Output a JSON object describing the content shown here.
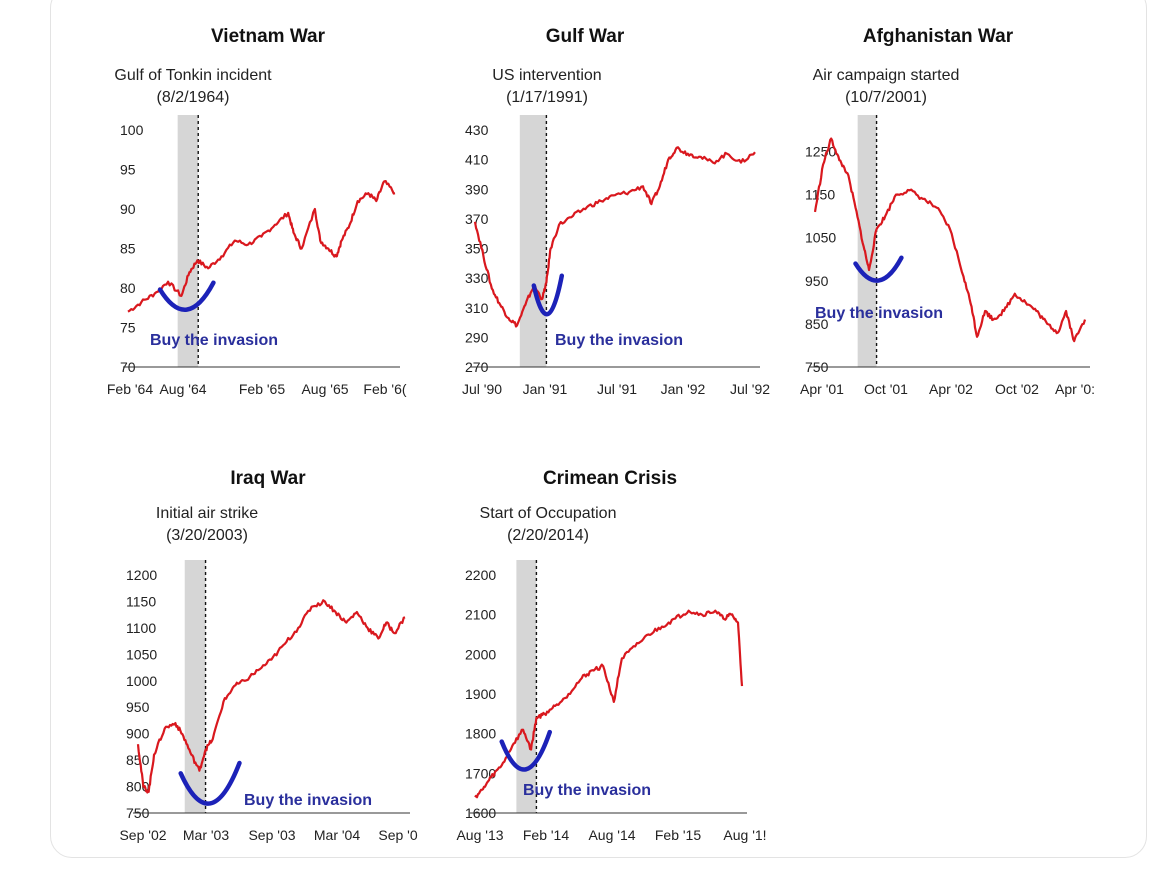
{
  "colors": {
    "line": "#d9181e",
    "shade": "#d6d6d6",
    "marker": "#1c22b8",
    "axis": "#333333"
  },
  "chart_data": [
    {
      "id": "vietnam",
      "type": "line",
      "title": "Vietnam War",
      "annotation": [
        "Gulf of Tonkin incident",
        "(8/2/1964)"
      ],
      "callout": "Buy the invasion",
      "x_labels": [
        "Feb '64",
        "Aug '64",
        "Feb '65",
        "Aug '65",
        "Feb '6("
      ],
      "y_ticks": [
        70,
        75,
        80,
        85,
        90,
        95,
        100
      ],
      "ylim": [
        70,
        100
      ],
      "event_x": 0.263,
      "shade_x": [
        0.186,
        0.263
      ],
      "series": [
        {
          "values": [
            [
              0,
              77
            ],
            [
              0.05,
              78.2
            ],
            [
              0.1,
              79.3
            ],
            [
              0.15,
              80.8
            ],
            [
              0.2,
              79
            ],
            [
              0.23,
              82
            ],
            [
              0.26,
              83.5
            ],
            [
              0.3,
              82.5
            ],
            [
              0.35,
              84
            ],
            [
              0.4,
              86
            ],
            [
              0.45,
              85.5
            ],
            [
              0.5,
              86.5
            ],
            [
              0.55,
              88
            ],
            [
              0.6,
              89.5
            ],
            [
              0.62,
              87
            ],
            [
              0.65,
              85
            ],
            [
              0.7,
              90
            ],
            [
              0.72,
              86
            ],
            [
              0.75,
              85
            ],
            [
              0.78,
              84
            ],
            [
              0.8,
              86
            ],
            [
              0.83,
              88
            ],
            [
              0.86,
              91
            ],
            [
              0.9,
              92
            ],
            [
              0.93,
              91
            ],
            [
              0.96,
              93.5
            ],
            [
              1,
              92
            ]
          ]
        }
      ],
      "smile": {
        "x": [
          0.12,
          0.32
        ],
        "y_top": 79.8,
        "y_bottom": 76.9
      }
    },
    {
      "id": "gulf",
      "type": "line",
      "title": "Gulf War",
      "annotation": [
        "US intervention",
        "(1/17/1991)"
      ],
      "callout": "Buy the invasion",
      "x_labels": [
        "Jul '90",
        "Jan '91",
        "Jul '91",
        "Jan '92",
        "Jul '92"
      ],
      "y_ticks": [
        270,
        290,
        310,
        330,
        350,
        370,
        390,
        410,
        430
      ],
      "ylim": [
        270,
        430
      ],
      "event_x": 0.255,
      "shade_x": [
        0.16,
        0.255
      ],
      "series": [
        {
          "values": [
            [
              0,
              368
            ],
            [
              0.03,
              345
            ],
            [
              0.06,
              323
            ],
            [
              0.09,
              312
            ],
            [
              0.12,
              303
            ],
            [
              0.15,
              298
            ],
            [
              0.18,
              312
            ],
            [
              0.21,
              325
            ],
            [
              0.24,
              316
            ],
            [
              0.255,
              327
            ],
            [
              0.27,
              350
            ],
            [
              0.3,
              366
            ],
            [
              0.35,
              372
            ],
            [
              0.4,
              378
            ],
            [
              0.45,
              382
            ],
            [
              0.5,
              386
            ],
            [
              0.55,
              388
            ],
            [
              0.6,
              392
            ],
            [
              0.63,
              380
            ],
            [
              0.66,
              392
            ],
            [
              0.69,
              410
            ],
            [
              0.72,
              418
            ],
            [
              0.76,
              414
            ],
            [
              0.8,
              412
            ],
            [
              0.85,
              408
            ],
            [
              0.9,
              414
            ],
            [
              0.95,
              408
            ],
            [
              1,
              415
            ]
          ]
        }
      ],
      "smile": {
        "x": [
          0.21,
          0.31
        ],
        "y_top": 325,
        "y_bottom": 303
      }
    },
    {
      "id": "afghanistan",
      "type": "line",
      "title": "Afghanistan War",
      "annotation": [
        "Air campaign started",
        "(10/7/2001)"
      ],
      "callout": "Buy the invasion",
      "x_labels": [
        "Apr '01",
        "Oct '01",
        "Apr '02",
        "Oct '02",
        "Apr '0:"
      ],
      "y_ticks": [
        750,
        850,
        950,
        1050,
        1150,
        1250
      ],
      "ylim": [
        750,
        1300
      ],
      "event_x": 0.228,
      "shade_x": [
        0.158,
        0.228
      ],
      "series": [
        {
          "values": [
            [
              0,
              1110
            ],
            [
              0.03,
              1220
            ],
            [
              0.06,
              1280
            ],
            [
              0.09,
              1230
            ],
            [
              0.12,
              1200
            ],
            [
              0.15,
              1120
            ],
            [
              0.18,
              1030
            ],
            [
              0.2,
              975
            ],
            [
              0.228,
              1070
            ],
            [
              0.26,
              1100
            ],
            [
              0.3,
              1150
            ],
            [
              0.35,
              1160
            ],
            [
              0.4,
              1140
            ],
            [
              0.45,
              1120
            ],
            [
              0.5,
              1070
            ],
            [
              0.55,
              960
            ],
            [
              0.58,
              890
            ],
            [
              0.6,
              820
            ],
            [
              0.63,
              880
            ],
            [
              0.66,
              860
            ],
            [
              0.7,
              880
            ],
            [
              0.74,
              920
            ],
            [
              0.78,
              900
            ],
            [
              0.82,
              880
            ],
            [
              0.86,
              850
            ],
            [
              0.9,
              830
            ],
            [
              0.93,
              880
            ],
            [
              0.96,
              810
            ],
            [
              1,
              860
            ]
          ]
        }
      ],
      "smile": {
        "x": [
          0.15,
          0.32
        ],
        "y_top": 990,
        "y_bottom": 945
      }
    },
    {
      "id": "iraq",
      "type": "line",
      "title": "Iraq War",
      "annotation": [
        "Initial air strike",
        "(3/20/2003)"
      ],
      "callout": "Buy the invasion",
      "x_labels": [
        "Sep '02",
        "Mar '03",
        "Sep '03",
        "Mar '04",
        "Sep '0"
      ],
      "y_ticks": [
        750,
        800,
        850,
        900,
        950,
        1000,
        1050,
        1100,
        1150,
        1200
      ],
      "ylim": [
        750,
        1200
      ],
      "event_x": 0.253,
      "shade_x": [
        0.175,
        0.253
      ],
      "series": [
        {
          "values": [
            [
              0,
              880
            ],
            [
              0.02,
              800
            ],
            [
              0.04,
              790
            ],
            [
              0.06,
              860
            ],
            [
              0.1,
              910
            ],
            [
              0.14,
              920
            ],
            [
              0.17,
              895
            ],
            [
              0.2,
              860
            ],
            [
              0.23,
              830
            ],
            [
              0.253,
              870
            ],
            [
              0.28,
              890
            ],
            [
              0.32,
              960
            ],
            [
              0.36,
              990
            ],
            [
              0.4,
              1000
            ],
            [
              0.45,
              1020
            ],
            [
              0.5,
              1040
            ],
            [
              0.55,
              1070
            ],
            [
              0.6,
              1100
            ],
            [
              0.65,
              1140
            ],
            [
              0.7,
              1150
            ],
            [
              0.74,
              1130
            ],
            [
              0.78,
              1110
            ],
            [
              0.82,
              1130
            ],
            [
              0.86,
              1100
            ],
            [
              0.9,
              1080
            ],
            [
              0.93,
              1110
            ],
            [
              0.96,
              1090
            ],
            [
              1,
              1120
            ]
          ]
        }
      ],
      "smile": {
        "x": [
          0.16,
          0.38
        ],
        "y_top": 825,
        "y_bottom": 760
      }
    },
    {
      "id": "crimea",
      "type": "line",
      "title": "Crimean Crisis",
      "annotation": [
        "Start of Occupation",
        "(2/20/2014)"
      ],
      "callout": "Buy the invasion",
      "x_labels": [
        "Aug '13",
        "Feb '14",
        "Aug '14",
        "Feb '15",
        "Aug '1!"
      ],
      "y_ticks": [
        1600,
        1700,
        1800,
        1900,
        2000,
        2100,
        2200
      ],
      "ylim": [
        1600,
        2200
      ],
      "event_x": 0.23,
      "shade_x": [
        0.155,
        0.23
      ],
      "series": [
        {
          "values": [
            [
              0,
              1640
            ],
            [
              0.03,
              1660
            ],
            [
              0.06,
              1690
            ],
            [
              0.1,
              1720
            ],
            [
              0.14,
              1770
            ],
            [
              0.18,
              1810
            ],
            [
              0.21,
              1760
            ],
            [
              0.23,
              1840
            ],
            [
              0.26,
              1850
            ],
            [
              0.3,
              1870
            ],
            [
              0.35,
              1900
            ],
            [
              0.4,
              1940
            ],
            [
              0.44,
              1960
            ],
            [
              0.48,
              1970
            ],
            [
              0.52,
              1880
            ],
            [
              0.55,
              1990
            ],
            [
              0.6,
              2020
            ],
            [
              0.65,
              2050
            ],
            [
              0.7,
              2070
            ],
            [
              0.75,
              2090
            ],
            [
              0.8,
              2110
            ],
            [
              0.85,
              2100
            ],
            [
              0.9,
              2110
            ],
            [
              0.93,
              2090
            ],
            [
              0.96,
              2100
            ],
            [
              0.985,
              2080
            ],
            [
              1,
              1920
            ]
          ]
        }
      ],
      "smile": {
        "x": [
          0.1,
          0.28
        ],
        "y_top": 1780,
        "y_bottom": 1700
      }
    }
  ]
}
